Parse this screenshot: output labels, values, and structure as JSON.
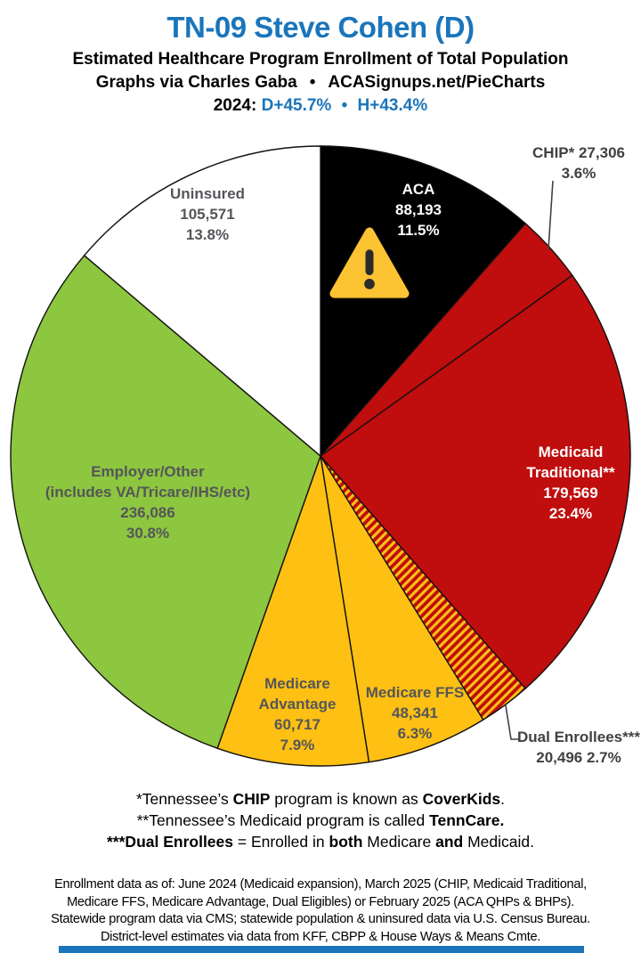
{
  "header": {
    "title": "TN-09 Steve Cohen (D)",
    "subtitle": "Estimated Healthcare Program Enrollment of Total Population",
    "credit_left": "Graphs via Charles Gaba",
    "credit_bullet": "•",
    "credit_right": "ACASignups.net/PieCharts",
    "year_label": "2024:",
    "partisan_lean": "D+45.7%",
    "lean_bullet": "•",
    "house_result": "H+43.4%"
  },
  "colors": {
    "title_blue": "#1a75bb",
    "slice_red": "#c00d0d",
    "slice_gold": "#fdc013",
    "slice_green": "#8dc63f",
    "slice_black": "#000000",
    "slice_white": "#ffffff",
    "inside_label_gray": "#54565a",
    "outside_label_gray": "#414042",
    "warning_yellow": "#fcc333",
    "warning_dark": "#2b2b2b",
    "footer_bar_blue": "#1a75bb"
  },
  "chart_data": {
    "type": "pie",
    "title": "TN-09 Steve Cohen (D) — Estimated Healthcare Program Enrollment of Total Population",
    "units": "people",
    "direction": "clockwise",
    "start_angle_deg_from_top": 0,
    "center": [
      360,
      512
    ],
    "radius": 348,
    "slices": [
      {
        "id": "aca",
        "name": "ACA",
        "value": 88193,
        "pct": 11.5,
        "fill": "#000000"
      },
      {
        "id": "chip",
        "name": "CHIP*",
        "value": 27306,
        "pct": 3.6,
        "fill": "#c00d0d"
      },
      {
        "id": "medicaid",
        "name": "Medicaid Traditional**",
        "value": 179569,
        "pct": 23.4,
        "fill": "#c00d0d"
      },
      {
        "id": "dual",
        "name": "Dual Enrollees***",
        "value": 20496,
        "pct": 2.7,
        "fill": "hatch-red-gold"
      },
      {
        "id": "ffs",
        "name": "Medicare FFS",
        "value": 48341,
        "pct": 6.3,
        "fill": "#fdc013"
      },
      {
        "id": "advantage",
        "name": "Medicare Advantage",
        "value": 60717,
        "pct": 7.9,
        "fill": "#fdc013"
      },
      {
        "id": "employer",
        "name": "Employer/Other (includes VA/Tricare/IHS/etc)",
        "value": 236086,
        "pct": 30.8,
        "fill": "#8dc63f"
      },
      {
        "id": "uninsured",
        "name": "Uninsured",
        "value": 105571,
        "pct": 13.8,
        "fill": "#ffffff"
      }
    ]
  },
  "slice_labels": {
    "uninsured": {
      "lines": [
        "Uninsured",
        "105,571",
        "13.8%"
      ]
    },
    "aca": {
      "lines": [
        "ACA",
        "88,193",
        "11.5%"
      ]
    },
    "chip": {
      "lines": [
        "CHIP* 27,306",
        "3.6%"
      ]
    },
    "medicaid": {
      "lines": [
        "Medicaid",
        "Traditional**",
        "179,569",
        "23.4%"
      ]
    },
    "employer": {
      "lines": [
        "Employer/Other",
        "(includes VA/Tricare/IHS/etc)",
        "236,086",
        "30.8%"
      ]
    },
    "advantage": {
      "lines": [
        "Medicare",
        "Advantage",
        "60,717",
        "7.9%"
      ]
    },
    "ffs": {
      "lines": [
        "Medicare FFS",
        "48,341",
        "6.3%"
      ]
    },
    "dual": {
      "lines": [
        "Dual Enrollees***",
        "20,496 2.7%"
      ]
    }
  },
  "footnotes": [
    [
      {
        "t": "*Tennessee’s "
      },
      {
        "t": "CHIP",
        "b": true
      },
      {
        "t": " program is known as "
      },
      {
        "t": "CoverKids",
        "b": true
      },
      {
        "t": "."
      }
    ],
    [
      {
        "t": "**Tennessee’s Medicaid program is called "
      },
      {
        "t": "TennCare.",
        "b": true
      }
    ],
    [
      {
        "t": "***Dual Enrollees",
        "b": true
      },
      {
        "t": " = Enrolled in "
      },
      {
        "t": "both",
        "b": true
      },
      {
        "t": " Medicare "
      },
      {
        "t": "and",
        "b": true
      },
      {
        "t": " Medicaid."
      }
    ]
  ],
  "disclaimer_lines": [
    "Enrollment data as of: June 2024 (Medicaid expansion), March 2025 (CHIP, Medicaid Traditional,",
    "Medicare FFS, Medicare Advantage, Dual Eligibles) or February 2025 (ACA QHPs & BHPs).",
    "Statewide program data via CMS; statewide population & uninsured data via U.S. Census Bureau.",
    "District-level estimates via data from KFF, CBPP & House Ways & Means Cmte."
  ]
}
